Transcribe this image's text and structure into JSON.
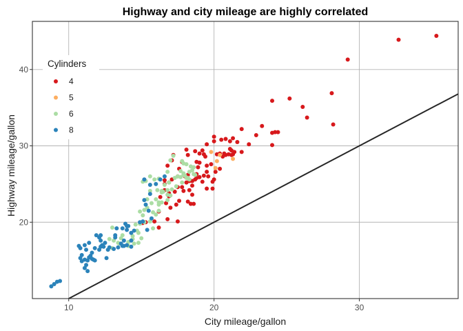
{
  "chart_data": {
    "type": "scatter",
    "title": "Highway and city mileage are highly correlated",
    "xlabel": "City mileage/gallon",
    "ylabel": "Highway mileage/gallon",
    "xlim": [
      7.5,
      36.8
    ],
    "ylim": [
      10.0,
      46.3
    ],
    "xticks": [
      10,
      20,
      30
    ],
    "yticks": [
      20,
      30,
      40
    ],
    "grid": true,
    "reference_line": {
      "slope": 1,
      "intercept": 0,
      "color": "#262626"
    },
    "legend": {
      "title": "Cylinders",
      "position": "top-left-inside",
      "entries": [
        {
          "label": "4",
          "color": "#d7191c"
        },
        {
          "label": "5",
          "color": "#fdae61"
        },
        {
          "label": "6",
          "color": "#abdda4"
        },
        {
          "label": "8",
          "color": "#2b83ba"
        }
      ]
    },
    "series": [
      {
        "name": "4",
        "color": "#d7191c",
        "points": [
          [
            35.3,
            44.4
          ],
          [
            32.7,
            43.9
          ],
          [
            29.2,
            41.3
          ],
          [
            28.1,
            36.9
          ],
          [
            28.2,
            32.8
          ],
          [
            26.4,
            33.7
          ],
          [
            26.1,
            35.1
          ],
          [
            24.0,
            35.9
          ],
          [
            25.2,
            36.2
          ],
          [
            23.3,
            32.6
          ],
          [
            24.2,
            31.8
          ],
          [
            24.0,
            31.7
          ],
          [
            24.4,
            31.8
          ],
          [
            24.0,
            30.1
          ],
          [
            22.9,
            31.4
          ],
          [
            22.4,
            30.2
          ],
          [
            21.9,
            32.2
          ],
          [
            21.3,
            31.0
          ],
          [
            20.8,
            30.9
          ],
          [
            20.0,
            31.2
          ],
          [
            21.1,
            30.6
          ],
          [
            21.6,
            30.5
          ],
          [
            21.9,
            29.2
          ],
          [
            21.2,
            29.4
          ],
          [
            21.4,
            29.2
          ],
          [
            21.0,
            28.9
          ],
          [
            20.8,
            28.8
          ],
          [
            20.6,
            28.6
          ],
          [
            20.4,
            29.0
          ],
          [
            20.7,
            29.0
          ],
          [
            19.4,
            28.6
          ],
          [
            19.0,
            29.0
          ],
          [
            18.7,
            29.3
          ],
          [
            18.1,
            29.5
          ],
          [
            21.1,
            29.6
          ],
          [
            20.5,
            30.8
          ],
          [
            21.3,
            28.9
          ],
          [
            21.2,
            28.8
          ],
          [
            19.3,
            28.9
          ],
          [
            19.0,
            27.8
          ],
          [
            18.8,
            27.9
          ],
          [
            18.9,
            27.2
          ],
          [
            19.5,
            26.6
          ],
          [
            19.2,
            25.3
          ],
          [
            19.5,
            24.4
          ],
          [
            18.8,
            26.3
          ],
          [
            18.5,
            24.8
          ],
          [
            17.2,
            28.8
          ],
          [
            17.1,
            28.1
          ],
          [
            17.6,
            27.0
          ],
          [
            17.5,
            26.0
          ],
          [
            18.1,
            25.2
          ],
          [
            17.8,
            24.6
          ],
          [
            17.5,
            24.6
          ],
          [
            18.7,
            25.6
          ],
          [
            16.7,
            22.5
          ],
          [
            17.4,
            22.3
          ],
          [
            17.6,
            22.8
          ],
          [
            16.8,
            20.4
          ],
          [
            16.6,
            24.2
          ],
          [
            16.9,
            23.8
          ],
          [
            17.5,
            20.1
          ],
          [
            17.0,
            21.9
          ],
          [
            16.3,
            23.3
          ],
          [
            16.6,
            25.5
          ],
          [
            16.2,
            21.4
          ],
          [
            15.9,
            20.1
          ],
          [
            16.2,
            19.3
          ],
          [
            15.0,
            19.9
          ],
          [
            15.1,
            19.9
          ],
          [
            15.3,
            20.0
          ],
          [
            19.3,
            26.1
          ],
          [
            19.0,
            25.9
          ],
          [
            18.2,
            22.7
          ],
          [
            18.4,
            22.4
          ],
          [
            18.5,
            23.6
          ],
          [
            18.6,
            22.4
          ],
          [
            19.9,
            24.4
          ],
          [
            19.9,
            25.3
          ],
          [
            20.1,
            26.6
          ],
          [
            20.0,
            25.6
          ],
          [
            18.8,
            25.8
          ],
          [
            18.3,
            25.4
          ],
          [
            18.5,
            25.4
          ],
          [
            19.8,
            27.6
          ],
          [
            16.9,
            25.2
          ],
          [
            17.3,
            24.0
          ],
          [
            18.2,
            26.2
          ],
          [
            17.9,
            24.1
          ],
          [
            18.3,
            24.2
          ],
          [
            16.9,
            23.4
          ],
          [
            19.5,
            27.4
          ],
          [
            19.6,
            26.0
          ],
          [
            20.4,
            27.0
          ],
          [
            18.0,
            26.0
          ],
          [
            16.8,
            27.4
          ],
          [
            17.1,
            25.6
          ],
          [
            16.6,
            25.0
          ],
          [
            18.2,
            28.8
          ],
          [
            17.8,
            27.9
          ],
          [
            19.2,
            29.4
          ],
          [
            20.0,
            30.6
          ],
          [
            20.2,
            28.9
          ],
          [
            19.5,
            30.2
          ]
        ]
      },
      {
        "name": "5",
        "color": "#fdae61",
        "points": [
          [
            19.8,
            29.2
          ],
          [
            20.2,
            28.0
          ],
          [
            20.4,
            28.8
          ],
          [
            21.3,
            28.3
          ],
          [
            20.1,
            27.1
          ]
        ]
      },
      {
        "name": "6",
        "color": "#abdda4",
        "points": [
          [
            17.2,
            28.7
          ],
          [
            17.0,
            28.1
          ],
          [
            16.8,
            26.6
          ],
          [
            16.2,
            25.7
          ],
          [
            16.8,
            24.2
          ],
          [
            16.4,
            24.1
          ],
          [
            16.1,
            24.2
          ],
          [
            16.0,
            23.0
          ],
          [
            16.4,
            22.6
          ],
          [
            16.2,
            22.3
          ],
          [
            15.8,
            21.3
          ],
          [
            15.4,
            21.9
          ],
          [
            15.6,
            24.1
          ],
          [
            15.1,
            25.3
          ],
          [
            15.3,
            25.4
          ],
          [
            15.6,
            26.0
          ],
          [
            15.9,
            25.6
          ],
          [
            15.4,
            23.0
          ],
          [
            15.7,
            22.5
          ],
          [
            15.1,
            20.9
          ],
          [
            14.7,
            18.9
          ],
          [
            14.4,
            18.2
          ],
          [
            14.1,
            17.4
          ],
          [
            14.5,
            17.2
          ],
          [
            14.8,
            17.3
          ],
          [
            15.0,
            17.9
          ],
          [
            14.6,
            19.7
          ],
          [
            13.6,
            17.9
          ],
          [
            14.1,
            16.9
          ],
          [
            13.1,
            17.6
          ],
          [
            12.8,
            17.8
          ],
          [
            13.4,
            17.3
          ],
          [
            13.0,
            19.3
          ],
          [
            13.0,
            16.6
          ],
          [
            17.5,
            26.0
          ],
          [
            17.3,
            25.8
          ],
          [
            17.7,
            25.9
          ],
          [
            17.9,
            26.4
          ],
          [
            18.0,
            26.1
          ],
          [
            18.1,
            25.8
          ],
          [
            17.7,
            26.7
          ],
          [
            17.9,
            26.2
          ],
          [
            18.3,
            26.6
          ],
          [
            18.6,
            26.3
          ],
          [
            18.5,
            26.8
          ],
          [
            18.7,
            26.2
          ],
          [
            18.3,
            25.6
          ],
          [
            18.2,
            25.8
          ],
          [
            16.6,
            24.9
          ],
          [
            16.9,
            25.2
          ],
          [
            16.8,
            23.6
          ],
          [
            16.2,
            22.6
          ],
          [
            17.0,
            23.5
          ],
          [
            17.1,
            24.3
          ],
          [
            17.4,
            24.7
          ],
          [
            17.8,
            25.2
          ],
          [
            18.6,
            27.2
          ],
          [
            17.8,
            28.0
          ],
          [
            17.9,
            27.7
          ],
          [
            18.4,
            27.3
          ],
          [
            18.1,
            27.6
          ],
          [
            16.8,
            22.9
          ],
          [
            16.0,
            21.0
          ],
          [
            14.9,
            21.4
          ],
          [
            15.2,
            20.0
          ],
          [
            14.9,
            19.8
          ],
          [
            16.2,
            21.5
          ],
          [
            15.6,
            20.1
          ],
          [
            15.8,
            19.2
          ],
          [
            16.4,
            23.9
          ],
          [
            16.5,
            24.0
          ],
          [
            15.2,
            21.6
          ],
          [
            14.4,
            17.8
          ],
          [
            14.8,
            18.6
          ],
          [
            13.7,
            18.3
          ],
          [
            13.5,
            17.2
          ]
        ]
      },
      {
        "name": "8",
        "color": "#2b83ba",
        "points": [
          [
            8.8,
            11.6
          ],
          [
            9.0,
            11.9
          ],
          [
            9.2,
            12.2
          ],
          [
            9.4,
            12.3
          ],
          [
            10.7,
            16.9
          ],
          [
            11.1,
            17.0
          ],
          [
            10.8,
            16.6
          ],
          [
            11.2,
            16.4
          ],
          [
            10.8,
            15.3
          ],
          [
            10.9,
            14.9
          ],
          [
            11.3,
            15.0
          ],
          [
            11.4,
            15.4
          ],
          [
            11.7,
            15.1
          ],
          [
            11.2,
            14.4
          ],
          [
            11.1,
            14.0
          ],
          [
            11.3,
            13.6
          ],
          [
            11.1,
            15.1
          ],
          [
            11.5,
            15.6
          ],
          [
            11.6,
            15.2
          ],
          [
            11.8,
            16.6
          ],
          [
            11.4,
            17.3
          ],
          [
            11.9,
            18.3
          ],
          [
            12.2,
            18.3
          ],
          [
            12.2,
            17.6
          ],
          [
            12.5,
            17.3
          ],
          [
            12.4,
            16.8
          ],
          [
            12.7,
            16.4
          ],
          [
            12.1,
            16.4
          ],
          [
            12.6,
            15.3
          ],
          [
            13.1,
            16.5
          ],
          [
            13.2,
            18.3
          ],
          [
            13.4,
            16.7
          ],
          [
            13.2,
            18.0
          ],
          [
            13.6,
            17.2
          ],
          [
            13.7,
            16.9
          ],
          [
            13.8,
            17.6
          ],
          [
            13.3,
            19.2
          ],
          [
            13.7,
            19.2
          ],
          [
            14.1,
            19.5
          ],
          [
            14.0,
            19.0
          ],
          [
            13.9,
            19.8
          ],
          [
            14.3,
            18.6
          ],
          [
            14.5,
            18.9
          ],
          [
            15.4,
            19.0
          ],
          [
            14.3,
            17.6
          ],
          [
            14.0,
            17.0
          ],
          [
            14.3,
            16.8
          ],
          [
            13.8,
            16.9
          ],
          [
            15.1,
            20.1
          ],
          [
            15.5,
            21.5
          ],
          [
            15.3,
            22.3
          ],
          [
            15.6,
            23.7
          ],
          [
            15.2,
            22.9
          ],
          [
            15.6,
            24.9
          ],
          [
            15.2,
            25.6
          ],
          [
            16.3,
            25.6
          ],
          [
            16.6,
            26.0
          ],
          [
            16.0,
            25.0
          ],
          [
            14.9,
            20.0
          ],
          [
            15.7,
            20.5
          ],
          [
            14.0,
            19.5
          ],
          [
            12.8,
            16.7
          ],
          [
            12.3,
            17.0
          ],
          [
            11.6,
            16.0
          ],
          [
            10.9,
            15.7
          ],
          [
            11.8,
            15.0
          ],
          [
            12.2,
            16.8
          ],
          [
            12.1,
            18.0
          ]
        ]
      }
    ]
  }
}
